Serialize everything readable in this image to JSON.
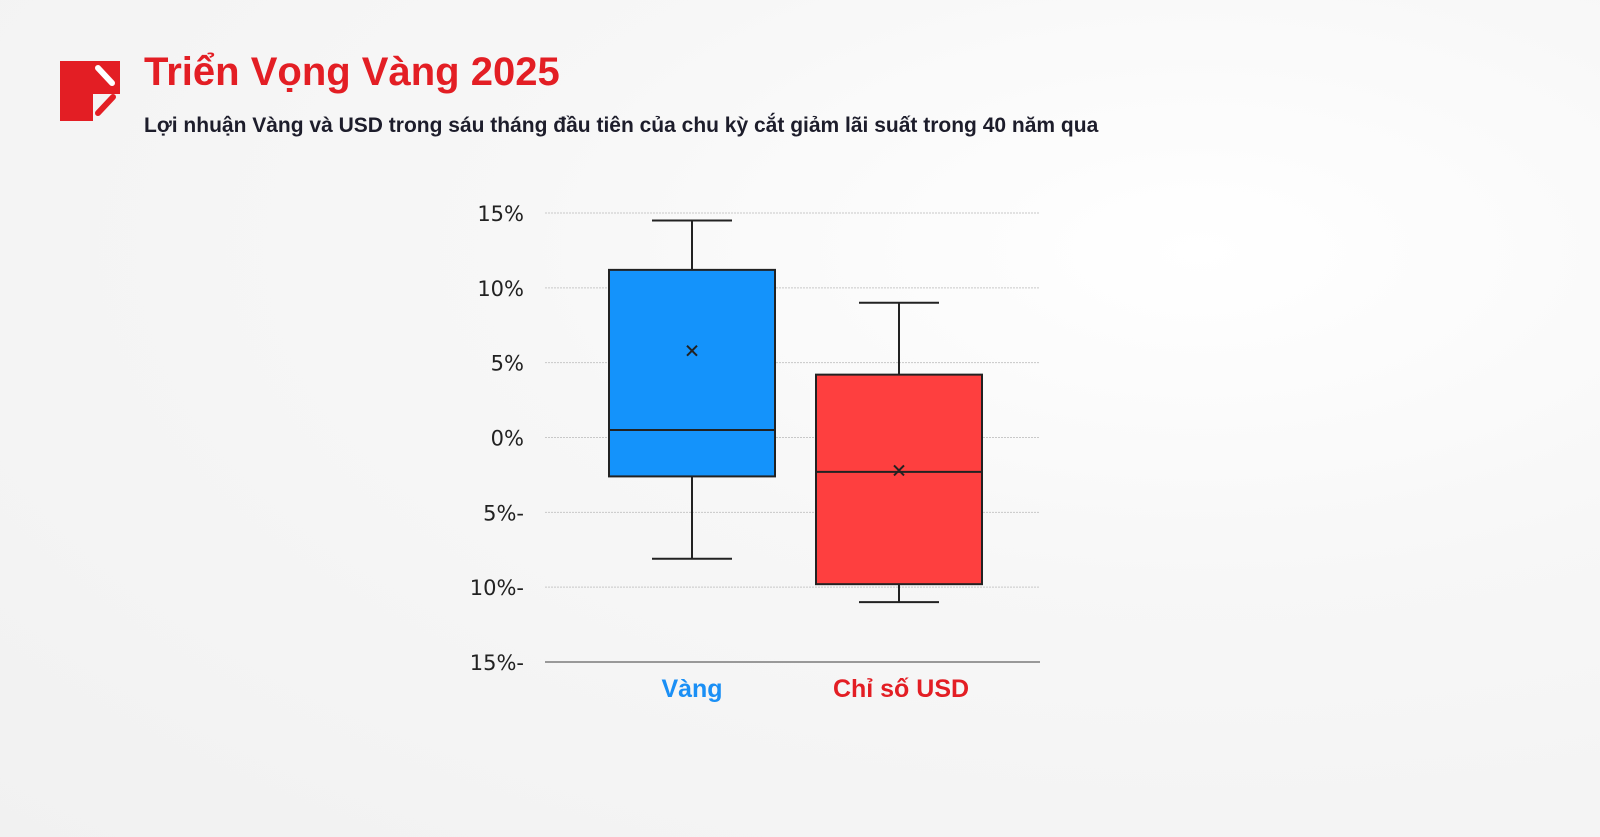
{
  "header": {
    "title": "Triển Vọng Vàng 2025",
    "subtitle": "Lợi nhuận Vàng và USD trong sáu tháng đầu tiên của chu kỳ cắt giảm lãi suất trong 40 năm qua",
    "brand_color": "#e31e24"
  },
  "chart_data": {
    "type": "box",
    "ylim": [
      -15,
      15
    ],
    "yticks": [
      15,
      10,
      5,
      0,
      -5,
      -10,
      -15
    ],
    "ytick_labels": [
      "15%",
      "10%",
      "5%",
      "0%",
      "5%-",
      "10%-",
      "15%-"
    ],
    "grid": true,
    "categories": [
      "Vàng",
      "Chỉ số USD"
    ],
    "series": [
      {
        "name": "Vàng",
        "color": "#1493fb",
        "min": -8.1,
        "q1": -2.6,
        "median": 0.5,
        "q3": 11.2,
        "max": 14.5,
        "mean": 5.8
      },
      {
        "name": "Chỉ số USD",
        "color": "#fe3f3f",
        "min": -11.0,
        "q1": -9.8,
        "median": -2.3,
        "q3": 4.2,
        "max": 9.0,
        "mean": -2.2
      }
    ],
    "label_colors": [
      "#1a8ff5",
      "#e31e24"
    ]
  }
}
